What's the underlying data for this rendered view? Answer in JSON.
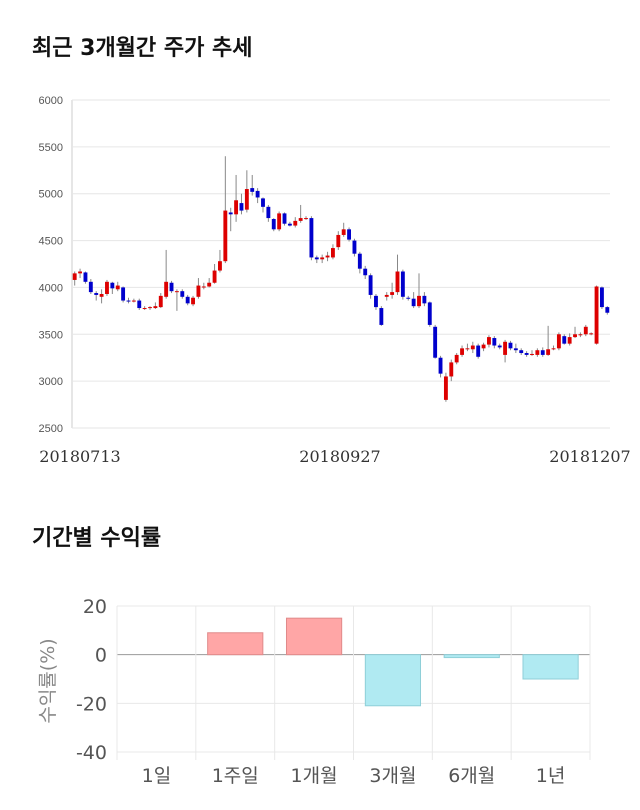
{
  "charts": {
    "price": {
      "title": "최근 3개월간 주가 추세",
      "chart_data": {
        "type": "candlestick",
        "title": "최근 3개월간 주가 추세",
        "xlabel": "",
        "ylabel": "",
        "ylim": [
          2500,
          6000
        ],
        "y_ticks": [
          "6000",
          "5500",
          "5000",
          "4500",
          "4000",
          "3500",
          "3000",
          "2500"
        ],
        "x_tick_labels": [
          "20180713",
          "20180927",
          "20181207"
        ],
        "up_color": "#dd0000",
        "down_color": "#0000cc",
        "candles": [
          [
            4080,
            4150,
            4170,
            4020
          ],
          [
            4150,
            4170,
            4200,
            4100
          ],
          [
            4160,
            4060,
            4170,
            4040
          ],
          [
            4060,
            3950,
            4090,
            3930
          ],
          [
            3940,
            3920,
            3960,
            3860
          ],
          [
            3900,
            3930,
            3980,
            3830
          ],
          [
            3930,
            4060,
            4080,
            3910
          ],
          [
            4050,
            3990,
            4060,
            3930
          ],
          [
            3980,
            4020,
            4060,
            3960
          ],
          [
            4000,
            3860,
            4010,
            3840
          ],
          [
            3860,
            3850,
            3890,
            3830
          ],
          [
            3850,
            3860,
            3880,
            3840
          ],
          [
            3860,
            3780,
            3880,
            3760
          ],
          [
            3780,
            3780,
            3800,
            3760
          ],
          [
            3780,
            3790,
            3800,
            3760
          ],
          [
            3780,
            3800,
            3840,
            3770
          ],
          [
            3790,
            3910,
            3940,
            3780
          ],
          [
            3900,
            4060,
            4400,
            3880
          ],
          [
            4050,
            3960,
            4070,
            3940
          ],
          [
            3950,
            3960,
            3980,
            3750
          ],
          [
            3960,
            3900,
            3980,
            3880
          ],
          [
            3900,
            3830,
            3920,
            3810
          ],
          [
            3820,
            3890,
            3910,
            3800
          ],
          [
            3900,
            4020,
            4100,
            3880
          ],
          [
            4010,
            4010,
            4050,
            3980
          ],
          [
            4010,
            4050,
            4100,
            4000
          ],
          [
            4050,
            4180,
            4250,
            4040
          ],
          [
            4180,
            4280,
            4400,
            4160
          ],
          [
            4280,
            4820,
            5400,
            4260
          ],
          [
            4800,
            4780,
            4850,
            4600
          ],
          [
            4780,
            4930,
            5200,
            4700
          ],
          [
            4900,
            4820,
            5000,
            4780
          ],
          [
            4830,
            5050,
            5250,
            4800
          ],
          [
            5060,
            5020,
            5200,
            4980
          ],
          [
            5030,
            4960,
            5060,
            4900
          ],
          [
            4950,
            4860,
            4960,
            4800
          ],
          [
            4860,
            4740,
            4880,
            4700
          ],
          [
            4730,
            4620,
            4740,
            4600
          ],
          [
            4620,
            4790,
            4810,
            4600
          ],
          [
            4790,
            4680,
            4800,
            4660
          ],
          [
            4680,
            4660,
            4700,
            4650
          ],
          [
            4660,
            4710,
            4750,
            4640
          ],
          [
            4710,
            4740,
            4880,
            4690
          ],
          [
            4740,
            4740,
            4760,
            4720
          ],
          [
            4740,
            4320,
            4760,
            4290
          ],
          [
            4320,
            4300,
            4340,
            4260
          ],
          [
            4300,
            4320,
            4350,
            4260
          ],
          [
            4320,
            4340,
            4380,
            4280
          ],
          [
            4320,
            4420,
            4460,
            4300
          ],
          [
            4430,
            4560,
            4600,
            4400
          ],
          [
            4560,
            4620,
            4690,
            4540
          ],
          [
            4620,
            4510,
            4640,
            4490
          ],
          [
            4500,
            4360,
            4520,
            4330
          ],
          [
            4360,
            4200,
            4380,
            4150
          ],
          [
            4200,
            4130,
            4230,
            4090
          ],
          [
            4130,
            3920,
            4150,
            3880
          ],
          [
            3910,
            3790,
            3930,
            3760
          ],
          [
            3780,
            3600,
            3800,
            3590
          ],
          [
            3900,
            3920,
            3950,
            3860
          ],
          [
            3920,
            3950,
            4050,
            3880
          ],
          [
            3950,
            4170,
            4350,
            3920
          ],
          [
            4170,
            3900,
            4190,
            3870
          ],
          [
            3890,
            3880,
            3910,
            3860
          ],
          [
            3880,
            3800,
            3950,
            3780
          ],
          [
            3800,
            3910,
            4150,
            3780
          ],
          [
            3910,
            3830,
            3950,
            3800
          ],
          [
            3840,
            3600,
            3850,
            3580
          ],
          [
            3580,
            3250,
            3600,
            3240
          ],
          [
            3250,
            3080,
            3270,
            3040
          ],
          [
            2800,
            3050,
            3090,
            2780
          ],
          [
            3050,
            3200,
            3230,
            3000
          ],
          [
            3200,
            3280,
            3300,
            3180
          ],
          [
            3280,
            3350,
            3380,
            3260
          ],
          [
            3340,
            3350,
            3400,
            3320
          ],
          [
            3340,
            3380,
            3420,
            3300
          ],
          [
            3380,
            3260,
            3400,
            3240
          ],
          [
            3350,
            3390,
            3410,
            3320
          ],
          [
            3390,
            3470,
            3490,
            3360
          ],
          [
            3460,
            3380,
            3480,
            3350
          ],
          [
            3380,
            3360,
            3400,
            3340
          ],
          [
            3280,
            3420,
            3440,
            3200
          ],
          [
            3410,
            3350,
            3430,
            3330
          ],
          [
            3350,
            3330,
            3400,
            3300
          ],
          [
            3330,
            3300,
            3350,
            3280
          ],
          [
            3300,
            3280,
            3320,
            3260
          ],
          [
            3280,
            3290,
            3330,
            3270
          ],
          [
            3280,
            3330,
            3350,
            3260
          ],
          [
            3330,
            3280,
            3360,
            3260
          ],
          [
            3280,
            3340,
            3590,
            3270
          ],
          [
            3340,
            3350,
            3380,
            3330
          ],
          [
            3350,
            3500,
            3520,
            3330
          ],
          [
            3480,
            3400,
            3500,
            3390
          ],
          [
            3400,
            3470,
            3510,
            3380
          ],
          [
            3470,
            3500,
            3580,
            3460
          ],
          [
            3500,
            3500,
            3520,
            3470
          ],
          [
            3500,
            3580,
            3600,
            3480
          ],
          [
            3500,
            3510,
            3520,
            3490
          ],
          [
            3400,
            4010,
            4020,
            3390
          ],
          [
            4000,
            3790,
            4010,
            3770
          ],
          [
            3790,
            3730,
            3800,
            3710
          ]
        ]
      }
    },
    "returns": {
      "title": "기간별 수익률",
      "chart_data": {
        "type": "bar",
        "title": "기간별 수익률",
        "xlabel": "",
        "ylabel": "수익률(%)",
        "ylim": [
          -40,
          20
        ],
        "y_ticks": [
          "20",
          "0",
          "-20",
          "-40"
        ],
        "categories": [
          "1일",
          "1주일",
          "1개월",
          "3개월",
          "6개월",
          "1년"
        ],
        "values": [
          0,
          9,
          15,
          -21,
          -1.2,
          -10
        ],
        "positive_color": "#ffa6a6",
        "negative_color": "#b0eaf2"
      }
    }
  }
}
